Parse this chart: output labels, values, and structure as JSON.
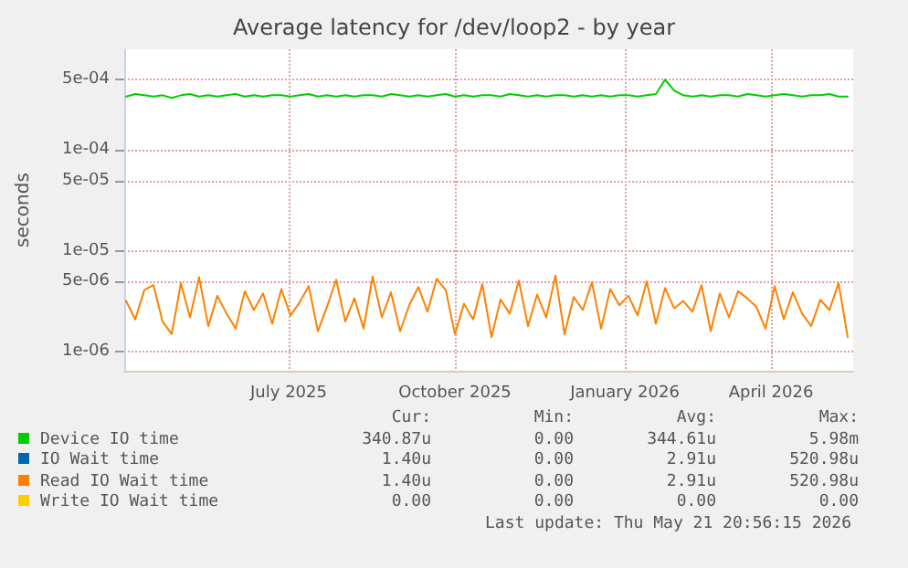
{
  "chart_data": {
    "type": "line",
    "title": "Average latency for /dev/loop2 - by year",
    "ylabel": "seconds",
    "log": "y",
    "grid": true,
    "legend": "bottom",
    "marker": "none",
    "line_style": "solid",
    "xlim": [
      "2025-04-17",
      "2026-05-21"
    ],
    "xticks": [
      {
        "value": "2025-07-16",
        "label": "July 2025"
      },
      {
        "value": "2025-10-15",
        "label": "October 2025"
      },
      {
        "value": "2026-01-16",
        "label": "January 2026"
      },
      {
        "value": "2026-04-06",
        "label": "April 2026"
      }
    ],
    "ylim": [
      6.5e-07,
      0.001
    ],
    "yticks": [
      {
        "value": 1e-06,
        "label": "1e-06"
      },
      {
        "value": 5e-06,
        "label": "5e-06"
      },
      {
        "value": 1e-05,
        "label": "1e-05"
      },
      {
        "value": 5e-05,
        "label": "5e-05"
      },
      {
        "value": 0.0001,
        "label": "1e-04"
      },
      {
        "value": 0.0005,
        "label": "5e-04"
      }
    ],
    "x": [
      "2025-04-18",
      "2025-04-23",
      "2025-04-28",
      "2025-05-03",
      "2025-05-08",
      "2025-05-13",
      "2025-05-18",
      "2025-05-23",
      "2025-05-28",
      "2025-06-02",
      "2025-06-07",
      "2025-06-12",
      "2025-06-17",
      "2025-06-22",
      "2025-06-27",
      "2025-07-02",
      "2025-07-07",
      "2025-07-12",
      "2025-07-17",
      "2025-07-22",
      "2025-07-27",
      "2025-08-01",
      "2025-08-06",
      "2025-08-11",
      "2025-08-16",
      "2025-08-21",
      "2025-08-26",
      "2025-08-31",
      "2025-09-05",
      "2025-09-10",
      "2025-09-15",
      "2025-09-20",
      "2025-09-25",
      "2025-09-30",
      "2025-10-05",
      "2025-10-10",
      "2025-10-15",
      "2025-10-20",
      "2025-10-25",
      "2025-10-30",
      "2025-11-04",
      "2025-11-09",
      "2025-11-14",
      "2025-11-19",
      "2025-11-24",
      "2025-11-29",
      "2025-12-04",
      "2025-12-09",
      "2025-12-14",
      "2025-12-19",
      "2025-12-24",
      "2025-12-29",
      "2026-01-03",
      "2026-01-08",
      "2026-01-13",
      "2026-01-18",
      "2026-01-23",
      "2026-01-28",
      "2026-02-02",
      "2026-02-07",
      "2026-02-12",
      "2026-02-17",
      "2026-02-22",
      "2026-02-27",
      "2026-03-04",
      "2026-03-09",
      "2026-03-14",
      "2026-03-19",
      "2026-03-24",
      "2026-03-29",
      "2026-04-03",
      "2026-04-08",
      "2026-04-13",
      "2026-04-18",
      "2026-04-23",
      "2026-04-28",
      "2026-05-03",
      "2026-05-08",
      "2026-05-13",
      "2026-05-18"
    ],
    "series": [
      {
        "name": "Device IO time",
        "color": "#00cc00",
        "values": [
          0.00034,
          0.00036,
          0.00035,
          0.00034,
          0.00035,
          0.00033,
          0.00035,
          0.00036,
          0.00034,
          0.00035,
          0.00034,
          0.00035,
          0.00036,
          0.00034,
          0.00035,
          0.00034,
          0.00035,
          0.00035,
          0.00034,
          0.00035,
          0.00036,
          0.00034,
          0.00035,
          0.00034,
          0.00035,
          0.00034,
          0.00035,
          0.00035,
          0.00034,
          0.00036,
          0.00035,
          0.00034,
          0.00035,
          0.00034,
          0.00035,
          0.00036,
          0.00034,
          0.00035,
          0.00034,
          0.00035,
          0.00035,
          0.00034,
          0.00036,
          0.00035,
          0.00034,
          0.00035,
          0.00034,
          0.00035,
          0.00035,
          0.00034,
          0.00035,
          0.00034,
          0.00035,
          0.00034,
          0.00035,
          0.00035,
          0.00034,
          0.00035,
          0.00036,
          0.0005,
          0.00039,
          0.00035,
          0.00034,
          0.00035,
          0.00034,
          0.00035,
          0.00035,
          0.00034,
          0.00036,
          0.00035,
          0.00034,
          0.00035,
          0.00036,
          0.00035,
          0.00034,
          0.00035,
          0.00035,
          0.00036,
          0.00034,
          0.00034
        ]
      },
      {
        "name": "IO Wait time",
        "color": "#0066b3",
        "values": [
          null,
          null,
          null,
          null,
          null,
          null,
          null,
          null,
          null,
          null,
          null,
          null,
          null,
          null,
          null,
          null,
          null,
          null,
          null,
          null,
          null,
          null,
          null,
          null,
          null,
          null,
          null,
          null,
          null,
          null,
          null,
          null,
          null,
          null,
          null,
          null,
          null,
          null,
          null,
          null,
          null,
          null,
          null,
          null,
          null,
          null,
          null,
          null,
          null,
          null,
          null,
          null,
          null,
          null,
          null,
          null,
          null,
          null,
          null,
          null,
          null,
          null,
          null,
          null,
          null,
          null,
          null,
          null,
          null,
          null,
          null,
          null,
          null,
          null,
          null,
          null,
          null,
          null,
          null,
          null
        ]
      },
      {
        "name": "Read IO Wait time",
        "color": "#ff8000",
        "values": [
          3.2e-06,
          2.1e-06,
          4.1e-06,
          4.6e-06,
          2e-06,
          1.5e-06,
          4.8e-06,
          2.2e-06,
          5.5e-06,
          1.8e-06,
          3.6e-06,
          2.4e-06,
          1.7e-06,
          4e-06,
          2.6e-06,
          3.8e-06,
          1.9e-06,
          4.2e-06,
          2.3e-06,
          3.1e-06,
          4.5e-06,
          1.6e-06,
          2.8e-06,
          5.2e-06,
          2e-06,
          3.4e-06,
          1.7e-06,
          5.6e-06,
          2.2e-06,
          3.9e-06,
          1.6e-06,
          2.9e-06,
          4.4e-06,
          2.5e-06,
          5.3e-06,
          4.1e-06,
          1.5e-06,
          3e-06,
          2.1e-06,
          4.7e-06,
          1.4e-06,
          3.3e-06,
          2.4e-06,
          5.1e-06,
          1.8e-06,
          3.7e-06,
          2.2e-06,
          5.7e-06,
          1.5e-06,
          3.5e-06,
          2.6e-06,
          4.9e-06,
          1.7e-06,
          4.2e-06,
          2.9e-06,
          3.6e-06,
          2.3e-06,
          5e-06,
          1.9e-06,
          4.3e-06,
          2.7e-06,
          3.2e-06,
          2.5e-06,
          4.6e-06,
          1.6e-06,
          3.8e-06,
          2.2e-06,
          4e-06,
          3.4e-06,
          2.8e-06,
          1.7e-06,
          4.5e-06,
          2.1e-06,
          3.9e-06,
          2.4e-06,
          1.8e-06,
          3.3e-06,
          2.6e-06,
          4.8e-06,
          1.4e-06
        ]
      },
      {
        "name": "Write IO Wait time",
        "color": "#ffcc00",
        "values": [
          null,
          null,
          null,
          null,
          null,
          null,
          null,
          null,
          null,
          null,
          null,
          null,
          null,
          null,
          null,
          null,
          null,
          null,
          null,
          null,
          null,
          null,
          null,
          null,
          null,
          null,
          null,
          null,
          null,
          null,
          null,
          null,
          null,
          null,
          null,
          null,
          null,
          null,
          null,
          null,
          null,
          null,
          null,
          null,
          null,
          null,
          null,
          null,
          null,
          null,
          null,
          null,
          null,
          null,
          null,
          null,
          null,
          null,
          null,
          null,
          null,
          null,
          null,
          null,
          null,
          null,
          null,
          null,
          null,
          null,
          null,
          null,
          null,
          null,
          null,
          null,
          null,
          null,
          null,
          null
        ]
      }
    ],
    "annotations": [
      "Cur:",
      "Min:",
      "Avg:",
      "Max:",
      "340.87u",
      "0.00",
      "344.61u",
      "5.98m",
      "1.40u",
      "0.00",
      "2.91u",
      "520.98u",
      "1.40u",
      "0.00",
      "2.91u",
      "520.98u",
      "0.00",
      "0.00",
      "0.00",
      "0.00",
      "Last update: Thu May 21 20:56:15 2026"
    ]
  }
}
